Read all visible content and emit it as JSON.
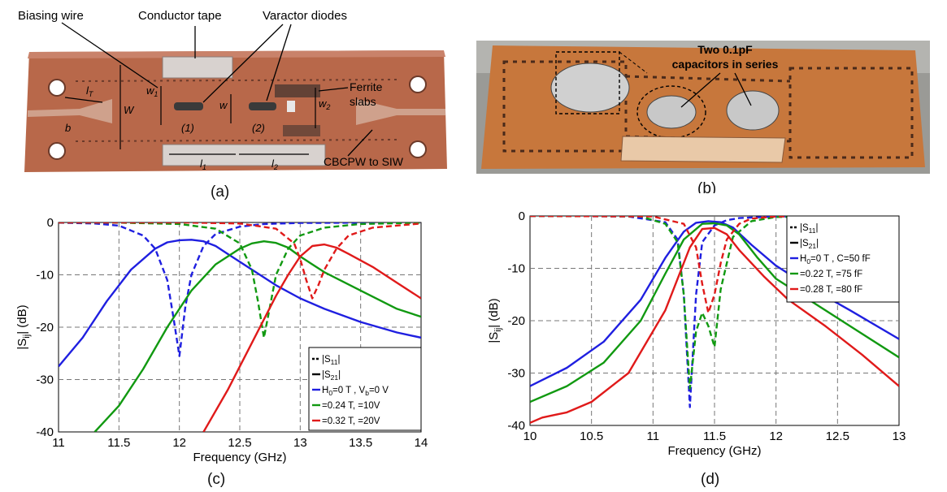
{
  "panels": {
    "a": {
      "caption": "(a)",
      "annotations": {
        "biasing_wire": "Biasing wire",
        "conductor_tape": "Conductor tape",
        "varactor_diodes": "Varactor diodes",
        "ferrite_slabs_1": "Ferrite",
        "ferrite_slabs_2": "slabs",
        "cbcpw": "CBCPW to SIW",
        "w1": "w",
        "w1_sub": "1",
        "w2": "w",
        "w2_sub": "2",
        "w": "w",
        "W": "W",
        "l1": "l",
        "l1_sub": "1",
        "l2": "l",
        "l2_sub": "2",
        "lt": "l",
        "lt_sub": "T",
        "b": "b",
        "d1": "(1)",
        "d2": "(2)"
      }
    },
    "b": {
      "caption": "(b)",
      "annotation_line1": "Two 0.1pF",
      "annotation_line2": "capacitors in series"
    },
    "c": {
      "caption": "(c)"
    },
    "d": {
      "caption": "(d)"
    }
  },
  "colors": {
    "blue": "#1f1fe0",
    "green": "#119911",
    "red": "#e01a1a",
    "copper": "#b8684a"
  },
  "chart_data": [
    {
      "id": "c",
      "type": "line",
      "xlabel": "Frequency (GHz)",
      "ylabel": "|S",
      "ylabel_sub": "ij",
      "ylabel_tail": "| (dB)",
      "xlim": [
        11,
        14
      ],
      "ylim": [
        -40,
        0
      ],
      "xticks": [
        "11",
        "11.5",
        "12",
        "12.5",
        "13",
        "13.5",
        "14"
      ],
      "yticks": [
        "0",
        "-10",
        "-20",
        "-30",
        "-40"
      ],
      "grid": true,
      "legend_position": "bottom-right",
      "legend": [
        {
          "text": "|S",
          "sub": "11",
          "tail": "|",
          "style": "dashed",
          "color": "#000000"
        },
        {
          "text": "|S",
          "sub": "21",
          "tail": "|",
          "style": "solid",
          "color": "#000000"
        },
        {
          "text": "H",
          "sub": "0",
          "tail": "=0 T    , V",
          "sub2": "b",
          "tail2": "=0 V",
          "style": "solid",
          "color": "#1f1fe0"
        },
        {
          "text": "     =0.24 T,     =10V",
          "style": "solid",
          "color": "#119911"
        },
        {
          "text": "     =0.32 T,     =20V",
          "style": "solid",
          "color": "#e01a1a"
        }
      ],
      "series": [
        {
          "color": "#1f1fe0",
          "dash": false,
          "x": [
            11.0,
            11.2,
            11.4,
            11.6,
            11.8,
            11.9,
            12.0,
            12.1,
            12.2,
            12.3,
            12.4,
            12.6,
            12.8,
            13.0,
            13.2,
            13.5,
            13.8,
            14.0
          ],
          "y": [
            -27.5,
            -22,
            -15,
            -9,
            -5,
            -3.8,
            -3.4,
            -3.3,
            -3.6,
            -4.5,
            -6,
            -9,
            -12,
            -14.5,
            -16.5,
            -19,
            -21,
            -22
          ]
        },
        {
          "color": "#1f1fe0",
          "dash": true,
          "x": [
            11.0,
            11.3,
            11.5,
            11.7,
            11.8,
            11.9,
            11.95,
            12.0,
            12.05,
            12.1,
            12.2,
            12.3,
            12.5,
            12.7,
            13.0,
            13.5,
            14.0
          ],
          "y": [
            -0.05,
            -0.2,
            -0.6,
            -2.5,
            -5,
            -11,
            -18,
            -25.5,
            -16,
            -10,
            -4.5,
            -2.2,
            -0.8,
            -0.3,
            -0.1,
            -0.05,
            -0.02
          ]
        },
        {
          "color": "#119911",
          "dash": false,
          "x": [
            11.3,
            11.5,
            11.7,
            11.9,
            12.1,
            12.3,
            12.5,
            12.6,
            12.7,
            12.8,
            12.9,
            13.0,
            13.2,
            13.5,
            13.8,
            14.0
          ],
          "y": [
            -40,
            -35,
            -28,
            -20,
            -13,
            -8,
            -5,
            -4,
            -3.6,
            -3.9,
            -4.8,
            -6.5,
            -9.5,
            -13,
            -16.5,
            -18
          ]
        },
        {
          "color": "#119911",
          "dash": true,
          "x": [
            11.0,
            11.5,
            12.0,
            12.3,
            12.5,
            12.6,
            12.65,
            12.7,
            12.75,
            12.8,
            12.9,
            13.0,
            13.2,
            13.5,
            14.0
          ],
          "y": [
            0,
            -0.05,
            -0.3,
            -1.2,
            -4,
            -9,
            -15,
            -22,
            -16,
            -10,
            -5,
            -2.5,
            -1,
            -0.3,
            -0.05
          ]
        },
        {
          "color": "#e01a1a",
          "dash": false,
          "x": [
            12.2,
            12.4,
            12.6,
            12.8,
            12.9,
            13.0,
            13.1,
            13.2,
            13.3,
            13.4,
            13.6,
            13.8,
            14.0
          ],
          "y": [
            -40,
            -32,
            -23,
            -14,
            -10,
            -6.5,
            -4.5,
            -4.2,
            -4.8,
            -6,
            -8.5,
            -11.5,
            -14.5
          ]
        },
        {
          "color": "#e01a1a",
          "dash": true,
          "x": [
            11.0,
            12.0,
            12.5,
            12.8,
            12.95,
            13.0,
            13.05,
            13.1,
            13.15,
            13.2,
            13.3,
            13.4,
            13.6,
            14.0
          ],
          "y": [
            0,
            0,
            -0.2,
            -1.2,
            -4,
            -7,
            -11,
            -14.5,
            -12,
            -9,
            -5,
            -2.5,
            -1,
            -0.2
          ]
        }
      ]
    },
    {
      "id": "d",
      "type": "line",
      "xlabel": "Frequency (GHz)",
      "ylabel": "|S",
      "ylabel_sub": "ij",
      "ylabel_tail": "| (dB)",
      "xlim": [
        10,
        13
      ],
      "ylim": [
        -40,
        0
      ],
      "xticks": [
        "10",
        "10.5",
        "11",
        "11.5",
        "12",
        "12.5",
        "13"
      ],
      "yticks": [
        "0",
        "-10",
        "-20",
        "-30",
        "-40"
      ],
      "grid": true,
      "legend_position": "top-right",
      "legend": [
        {
          "text": "|S",
          "sub": "11",
          "tail": "|",
          "style": "dashed",
          "color": "#000000"
        },
        {
          "text": "|S",
          "sub": "21",
          "tail": "|",
          "style": "solid",
          "color": "#000000"
        },
        {
          "text": "H",
          "sub": "0",
          "tail": "=0 T    , C=50 fF",
          "style": "solid",
          "color": "#1f1fe0"
        },
        {
          "text": "     =0.22 T,     =75 fF",
          "style": "solid",
          "color": "#119911"
        },
        {
          "text": "     =0.28 T,     =80 fF",
          "style": "solid",
          "color": "#e01a1a"
        }
      ],
      "series": [
        {
          "color": "#1f1fe0",
          "dash": false,
          "x": [
            10.0,
            10.3,
            10.6,
            10.9,
            11.1,
            11.25,
            11.35,
            11.45,
            11.55,
            11.65,
            11.8,
            12.0,
            12.3,
            12.6,
            13.0
          ],
          "y": [
            -32.5,
            -29,
            -24,
            -16,
            -8,
            -3,
            -1.3,
            -1,
            -1.2,
            -2.2,
            -5.5,
            -9.5,
            -14,
            -18,
            -23.5
          ]
        },
        {
          "color": "#1f1fe0",
          "dash": true,
          "x": [
            10.0,
            10.8,
            11.1,
            11.2,
            11.25,
            11.3,
            11.35,
            11.4,
            11.5,
            11.6,
            11.7,
            12.0,
            13.0
          ],
          "y": [
            0,
            -0.1,
            -1.2,
            -4.5,
            -15,
            -36.5,
            -15,
            -5,
            -1.8,
            -0.8,
            -0.4,
            -0.1,
            0
          ]
        },
        {
          "color": "#119911",
          "dash": false,
          "x": [
            10.0,
            10.3,
            10.6,
            10.9,
            11.1,
            11.25,
            11.4,
            11.5,
            11.6,
            11.7,
            11.85,
            12.0,
            12.3,
            12.6,
            13.0
          ],
          "y": [
            -35.5,
            -32.5,
            -28,
            -20,
            -11,
            -4.5,
            -1.5,
            -1.4,
            -1.8,
            -3.5,
            -8,
            -12,
            -16.5,
            -21,
            -27
          ]
        },
        {
          "color": "#119911",
          "dash": true,
          "x": [
            10.0,
            10.9,
            11.1,
            11.2,
            11.25,
            11.3,
            11.35,
            11.4,
            11.45,
            11.5,
            11.55,
            11.65,
            11.8,
            12.0,
            13.0
          ],
          "y": [
            0,
            -0.1,
            -1.5,
            -5,
            -15,
            -33,
            -22,
            -18.5,
            -21,
            -25,
            -14,
            -4,
            -1,
            -0.2,
            0
          ]
        },
        {
          "color": "#e01a1a",
          "dash": false,
          "x": [
            10.0,
            10.1,
            10.2,
            10.3,
            10.5,
            10.8,
            11.1,
            11.3,
            11.4,
            11.5,
            11.6,
            11.7,
            11.9,
            12.1,
            12.4,
            12.7,
            13.0
          ],
          "y": [
            -39.5,
            -38.5,
            -38,
            -37.5,
            -35.5,
            -30,
            -18,
            -6,
            -2.5,
            -2.3,
            -3.5,
            -6.5,
            -11.5,
            -16,
            -21,
            -26.5,
            -32.5
          ]
        },
        {
          "color": "#e01a1a",
          "dash": true,
          "x": [
            10.0,
            11.0,
            11.25,
            11.35,
            11.4,
            11.45,
            11.5,
            11.55,
            11.6,
            11.7,
            11.8,
            12.0,
            13.0
          ],
          "y": [
            0,
            -0.1,
            -1.5,
            -6,
            -13,
            -18.5,
            -15,
            -9,
            -4.5,
            -1.5,
            -0.5,
            -0.1,
            0
          ]
        }
      ]
    }
  ]
}
